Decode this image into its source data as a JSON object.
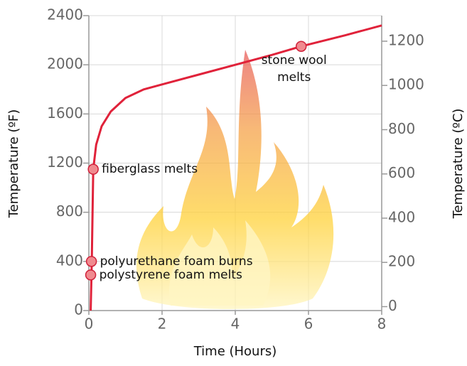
{
  "chart_data": {
    "type": "line",
    "x_label": "Time (Hours)",
    "y_label": "Temperature  (ºF)",
    "y2_label": "Temperature  (ºC)",
    "xlim": [
      0,
      8
    ],
    "xticks": [
      0,
      2,
      4,
      6,
      8
    ],
    "ylim": [
      0,
      2400
    ],
    "yticks": [
      0,
      400,
      800,
      1200,
      1600,
      2000,
      2400
    ],
    "y2lim": [
      -17.8,
      1315.6
    ],
    "y2ticks": [
      0,
      200,
      400,
      600,
      800,
      1000,
      1200
    ],
    "grid": true,
    "series": [
      {
        "color": "#e0223a",
        "x": [
          0.05,
          0.08,
          0.12,
          0.2,
          0.35,
          0.6,
          1,
          1.5,
          2,
          3,
          4,
          5,
          5.8,
          7,
          8
        ],
        "values": [
          0,
          400,
          1150,
          1350,
          1500,
          1620,
          1730,
          1800,
          1840,
          1920,
          2000,
          2080,
          2150,
          2240,
          2320
        ]
      }
    ],
    "annotations": [
      {
        "x": 0.05,
        "y": 290,
        "label": [
          "polystyrene foam melts"
        ]
      },
      {
        "x": 0.07,
        "y": 400,
        "label": [
          "polyurethane foam burns"
        ]
      },
      {
        "x": 0.12,
        "y": 1150,
        "label": [
          "fiberglass melts"
        ]
      },
      {
        "x": 5.8,
        "y": 2150,
        "label": [
          "stone wool",
          "melts"
        ]
      }
    ]
  }
}
